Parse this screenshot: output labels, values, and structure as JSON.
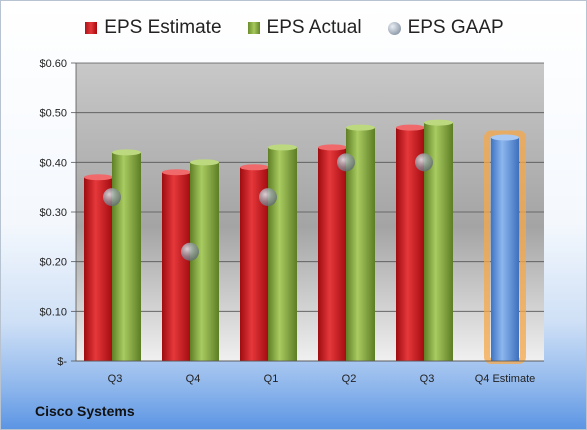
{
  "legend": {
    "estimate": "EPS Estimate",
    "actual": "EPS Actual",
    "gaap": "EPS GAAP"
  },
  "company": "Cisco Systems",
  "colors": {
    "estimate": "#d42528",
    "actual": "#8fb348",
    "gaap": "#a3acb8",
    "forecast": "#6a9be0",
    "forecast_glow": "#f5a84b"
  },
  "chart_data": {
    "type": "bar",
    "categories": [
      "Q3",
      "Q4",
      "Q1",
      "Q2",
      "Q3",
      "Q4 Estimate"
    ],
    "series": [
      {
        "name": "EPS Estimate",
        "values": [
          0.37,
          0.38,
          0.39,
          0.43,
          0.47,
          null
        ]
      },
      {
        "name": "EPS Actual",
        "values": [
          0.42,
          0.4,
          0.43,
          0.47,
          0.48,
          null
        ]
      },
      {
        "name": "EPS GAAP",
        "values": [
          0.33,
          0.22,
          0.33,
          0.4,
          0.4,
          null
        ]
      }
    ],
    "forecast": {
      "category": "Q4 Estimate",
      "value": 0.45
    },
    "ylim": [
      0,
      0.6
    ],
    "yticks": [
      0,
      0.1,
      0.2,
      0.3,
      0.4,
      0.5,
      0.6
    ],
    "ytick_labels": [
      "$-",
      "$0.10",
      "$0.20",
      "$0.30",
      "$0.40",
      "$0.50",
      "$0.60"
    ],
    "grid": true,
    "legend_position": "top"
  }
}
